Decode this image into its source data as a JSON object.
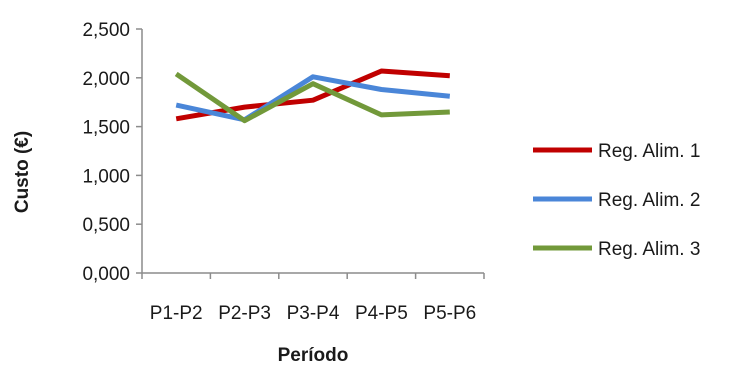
{
  "chart_data": {
    "type": "line",
    "title": "",
    "xlabel": "Período",
    "ylabel": "Custo (€)",
    "categories": [
      "P1-P2",
      "P2-P3",
      "P3-P4",
      "P4-P5",
      "P5-P6"
    ],
    "ylim": [
      0,
      2.5
    ],
    "yticks": [
      "0,000",
      "0,500",
      "1,000",
      "1,500",
      "2,000",
      "2,500"
    ],
    "grid": false,
    "legend_position": "right",
    "series": [
      {
        "name": "Reg. Alim. 1",
        "color": "#c00000",
        "values": [
          1.58,
          1.7,
          1.77,
          2.07,
          2.02
        ]
      },
      {
        "name": "Reg. Alim. 2",
        "color": "#4a86d8",
        "values": [
          1.72,
          1.57,
          2.01,
          1.88,
          1.81
        ]
      },
      {
        "name": "Reg. Alim. 3",
        "color": "#72993a",
        "values": [
          2.04,
          1.56,
          1.94,
          1.62,
          1.65
        ]
      }
    ]
  }
}
